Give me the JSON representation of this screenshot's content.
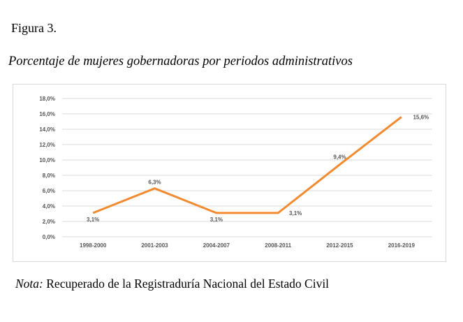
{
  "figure": {
    "label": "Figura 3.",
    "title": "Porcentaje de mujeres gobernadoras por periodos administrativos"
  },
  "note": {
    "label": "Nota:",
    "text": " Recuperado de la Registraduría Nacional del Estado Civil"
  },
  "chart_data": {
    "type": "line",
    "categories": [
      "1998-2000",
      "2001-2003",
      "2004-2007",
      "2008-2011",
      "2012-2015",
      "2016-2019"
    ],
    "series": [
      {
        "values": [
          3.1,
          6.3,
          3.1,
          3.1,
          9.4,
          15.6
        ]
      }
    ],
    "data_labels": [
      "3,1%",
      "6,3%",
      "3,1%",
      "3,1%",
      "9,4%",
      "15,6%"
    ],
    "y_ticks": [
      {
        "value": 0,
        "label": "0,0%"
      },
      {
        "value": 2,
        "label": "2,0%"
      },
      {
        "value": 4,
        "label": "4,0%"
      },
      {
        "value": 6,
        "label": "6,0%"
      },
      {
        "value": 8,
        "label": "8,0%"
      },
      {
        "value": 10,
        "label": "10,0%"
      },
      {
        "value": 12,
        "label": "12,0%"
      },
      {
        "value": 14,
        "label": "14,0%"
      },
      {
        "value": 16,
        "label": "16,0%"
      },
      {
        "value": 18,
        "label": "18,0%"
      }
    ],
    "ylim": [
      0,
      18
    ],
    "grid": true,
    "line_color": "#F28A30",
    "grid_color": "#d9d9d9",
    "label_color": "#555555"
  }
}
